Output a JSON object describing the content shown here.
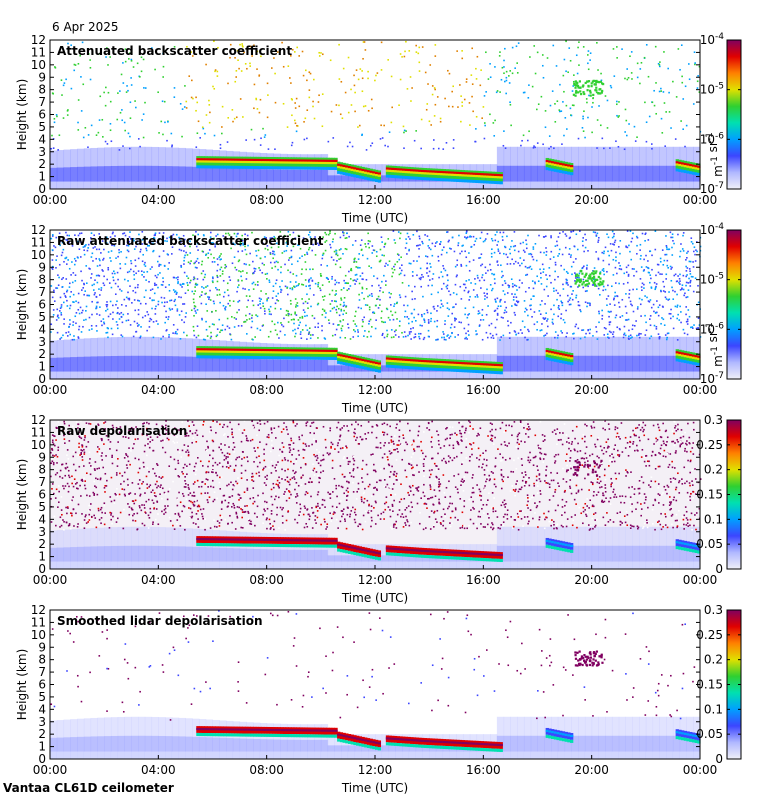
{
  "date": "6 Apr 2025",
  "footer": "Vantaa CL61D ceilometer",
  "chart_data": [
    {
      "type": "heatmap",
      "title": "Attenuated backscatter coefficient",
      "xlabel": "Time (UTC)",
      "ylabel": "Height (km)",
      "xticks": [
        "00:00",
        "04:00",
        "08:00",
        "12:00",
        "16:00",
        "20:00",
        "00:00"
      ],
      "yticks": [
        "0",
        "1",
        "2",
        "3",
        "4",
        "5",
        "6",
        "7",
        "8",
        "9",
        "10",
        "11",
        "12"
      ],
      "ylim": [
        0,
        12
      ],
      "colorbar": {
        "scale": "log",
        "label": "m-1 sr-1",
        "ticks": [
          "10-7",
          "10-6",
          "10-5",
          "10-4"
        ]
      }
    },
    {
      "type": "heatmap",
      "title": "Raw attenuated backscatter coefficient",
      "xlabel": "Time (UTC)",
      "ylabel": "Height (km)",
      "xticks": [
        "00:00",
        "04:00",
        "08:00",
        "12:00",
        "16:00",
        "20:00",
        "00:00"
      ],
      "yticks": [
        "0",
        "1",
        "2",
        "3",
        "4",
        "5",
        "6",
        "7",
        "8",
        "9",
        "10",
        "11",
        "12"
      ],
      "ylim": [
        0,
        12
      ],
      "colorbar": {
        "scale": "log",
        "label": "m-1 sr-1",
        "ticks": [
          "10-7",
          "10-6",
          "10-5",
          "10-4"
        ]
      }
    },
    {
      "type": "heatmap",
      "title": "Raw depolarisation",
      "xlabel": "Time (UTC)",
      "ylabel": "Height (km)",
      "xticks": [
        "00:00",
        "04:00",
        "08:00",
        "12:00",
        "16:00",
        "20:00",
        "00:00"
      ],
      "yticks": [
        "0",
        "1",
        "2",
        "3",
        "4",
        "5",
        "6",
        "7",
        "8",
        "9",
        "10",
        "11",
        "12"
      ],
      "ylim": [
        0,
        12
      ],
      "colorbar": {
        "scale": "linear",
        "label": "",
        "ticks": [
          "0",
          "0.05",
          "0.1",
          "0.15",
          "0.2",
          "0.25",
          "0.3"
        ]
      }
    },
    {
      "type": "heatmap",
      "title": "Smoothed lidar depolarisation",
      "xlabel": "Time (UTC)",
      "ylabel": "Height (km)",
      "xticks": [
        "00:00",
        "04:00",
        "08:00",
        "12:00",
        "16:00",
        "20:00",
        "00:00"
      ],
      "yticks": [
        "0",
        "1",
        "2",
        "3",
        "4",
        "5",
        "6",
        "7",
        "8",
        "9",
        "10",
        "11",
        "12"
      ],
      "ylim": [
        0,
        12
      ],
      "colorbar": {
        "scale": "linear",
        "label": "",
        "ticks": [
          "0",
          "0.05",
          "0.1",
          "0.15",
          "0.2",
          "0.25",
          "0.3"
        ]
      }
    }
  ],
  "colors": {
    "colormap": [
      "#f0f0f8",
      "#b0b8ff",
      "#3c46ff",
      "#00a0ff",
      "#00e0b0",
      "#30d030",
      "#e0e000",
      "#ff8000",
      "#e00000",
      "#800060"
    ]
  }
}
